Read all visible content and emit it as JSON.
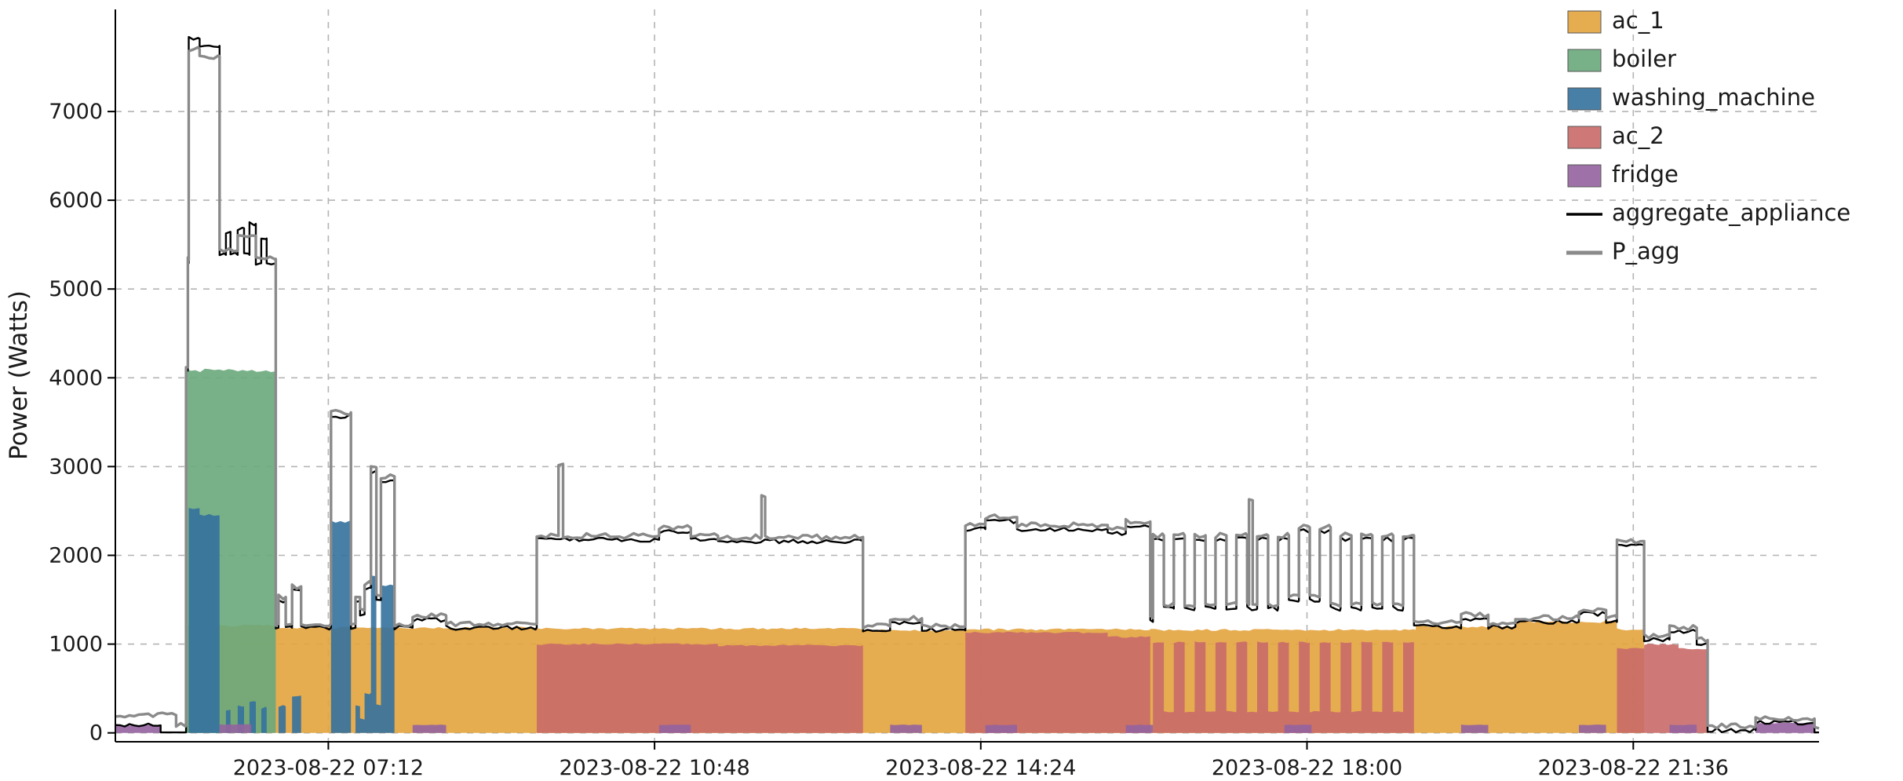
{
  "chart_data": {
    "type": "area",
    "title": "",
    "xlabel": "",
    "ylabel": "Power (Watts)",
    "x_unit": "hours of day 2023-08-22",
    "xlim": [
      4.85,
      23.65
    ],
    "ylim": [
      -100,
      8150
    ],
    "grid": "dashed",
    "legend_position": "upper right",
    "xticks": [
      {
        "t": 7.2,
        "label": "2023-08-22 07:12"
      },
      {
        "t": 10.8,
        "label": "2023-08-22 10:48"
      },
      {
        "t": 14.4,
        "label": "2023-08-22 14:24"
      },
      {
        "t": 18.0,
        "label": "2023-08-22 18:00"
      },
      {
        "t": 21.6,
        "label": "2023-08-22 21:36"
      }
    ],
    "yticks": [
      0,
      1000,
      2000,
      3000,
      4000,
      5000,
      6000,
      7000
    ],
    "series": [
      {
        "name": "ac_1",
        "kind": "area",
        "color": "#e3a33d",
        "noise": 12,
        "points": [
          [
            4.85,
            0
          ],
          [
            5.65,
            1210
          ],
          [
            6.6,
            1185
          ],
          [
            9.5,
            1175
          ],
          [
            13.1,
            1155
          ],
          [
            14.23,
            1165
          ],
          [
            16.27,
            1160
          ],
          [
            19.2,
            1195
          ],
          [
            20.3,
            1250
          ],
          [
            21.42,
            1165
          ],
          [
            21.72,
            0
          ],
          [
            23.65,
            0
          ]
        ]
      },
      {
        "name": "boiler",
        "kind": "area",
        "color": "#69a87b",
        "noise": 22,
        "points": [
          [
            4.85,
            0
          ],
          [
            5.63,
            4080
          ],
          [
            6.62,
            0
          ],
          [
            23.65,
            0
          ]
        ]
      },
      {
        "name": "washing_machine",
        "kind": "area",
        "color": "#34719d",
        "noise": 16,
        "points": [
          [
            4.85,
            0
          ],
          [
            5.66,
            2530
          ],
          [
            5.78,
            2450
          ],
          [
            6.0,
            0
          ],
          [
            6.07,
            260
          ],
          [
            6.12,
            0
          ],
          [
            6.2,
            300
          ],
          [
            6.27,
            0
          ],
          [
            6.33,
            350
          ],
          [
            6.4,
            0
          ],
          [
            6.46,
            280
          ],
          [
            6.52,
            0
          ],
          [
            6.65,
            300
          ],
          [
            6.73,
            0
          ],
          [
            6.8,
            420
          ],
          [
            6.9,
            0
          ],
          [
            7.23,
            2380
          ],
          [
            7.45,
            0
          ],
          [
            7.5,
            300
          ],
          [
            7.55,
            150
          ],
          [
            7.6,
            450
          ],
          [
            7.67,
            1760
          ],
          [
            7.73,
            310
          ],
          [
            7.78,
            1660
          ],
          [
            7.93,
            0
          ],
          [
            23.65,
            0
          ]
        ]
      },
      {
        "name": "ac_2",
        "kind": "area",
        "color": "#c96a68",
        "noise": 10,
        "points": [
          [
            4.85,
            0
          ],
          [
            9.5,
            1000
          ],
          [
            11.5,
            985
          ],
          [
            13.1,
            0
          ],
          [
            14.23,
            1130
          ],
          [
            15.8,
            1080
          ],
          [
            16.27,
            0
          ],
          [
            16.3,
            1020
          ],
          [
            16.42,
            240
          ],
          [
            16.53,
            1020
          ],
          [
            16.65,
            240
          ],
          [
            16.76,
            1020
          ],
          [
            16.88,
            240
          ],
          [
            16.99,
            1020
          ],
          [
            17.11,
            240
          ],
          [
            17.22,
            1020
          ],
          [
            17.34,
            240
          ],
          [
            17.45,
            1020
          ],
          [
            17.57,
            240
          ],
          [
            17.68,
            1020
          ],
          [
            17.8,
            240
          ],
          [
            17.91,
            1020
          ],
          [
            18.03,
            240
          ],
          [
            18.14,
            1020
          ],
          [
            18.26,
            240
          ],
          [
            18.37,
            1020
          ],
          [
            18.49,
            240
          ],
          [
            18.6,
            1020
          ],
          [
            18.72,
            240
          ],
          [
            18.83,
            1020
          ],
          [
            18.95,
            240
          ],
          [
            19.06,
            1020
          ],
          [
            19.18,
            0
          ],
          [
            21.42,
            950
          ],
          [
            21.72,
            1000
          ],
          [
            22.1,
            950
          ],
          [
            22.42,
            0
          ],
          [
            23.65,
            0
          ]
        ]
      },
      {
        "name": "fridge",
        "kind": "area",
        "color": "#93639f",
        "noise": 4,
        "points": [
          [
            4.85,
            85
          ],
          [
            5.35,
            0
          ],
          [
            6.0,
            95
          ],
          [
            6.35,
            0
          ],
          [
            8.13,
            90
          ],
          [
            8.5,
            0
          ],
          [
            10.85,
            90
          ],
          [
            11.2,
            0
          ],
          [
            13.4,
            90
          ],
          [
            13.75,
            0
          ],
          [
            14.45,
            90
          ],
          [
            14.8,
            0
          ],
          [
            16.0,
            90
          ],
          [
            16.3,
            0
          ],
          [
            17.75,
            90
          ],
          [
            18.05,
            0
          ],
          [
            19.7,
            90
          ],
          [
            20.0,
            0
          ],
          [
            21.0,
            90
          ],
          [
            21.3,
            0
          ],
          [
            22.0,
            90
          ],
          [
            22.3,
            0
          ],
          [
            22.95,
            110
          ],
          [
            23.6,
            0
          ],
          [
            23.65,
            0
          ]
        ]
      },
      {
        "name": "aggregate_appliance",
        "kind": "line",
        "color": "#000000",
        "width": 2.4,
        "noise": 24,
        "points": [
          [
            4.85,
            85
          ],
          [
            5.35,
            5
          ],
          [
            5.63,
            4080
          ],
          [
            5.65,
            5290
          ],
          [
            5.66,
            7820
          ],
          [
            5.78,
            7740
          ],
          [
            6.0,
            5385
          ],
          [
            6.07,
            5645
          ],
          [
            6.12,
            5385
          ],
          [
            6.2,
            5685
          ],
          [
            6.27,
            5385
          ],
          [
            6.33,
            5735
          ],
          [
            6.4,
            5290
          ],
          [
            6.46,
            5570
          ],
          [
            6.52,
            5290
          ],
          [
            6.62,
            1185
          ],
          [
            6.65,
            1485
          ],
          [
            6.73,
            1185
          ],
          [
            6.8,
            1605
          ],
          [
            6.9,
            1185
          ],
          [
            7.23,
            3565
          ],
          [
            7.45,
            1185
          ],
          [
            7.5,
            1485
          ],
          [
            7.55,
            1335
          ],
          [
            7.6,
            1635
          ],
          [
            7.67,
            2945
          ],
          [
            7.73,
            1495
          ],
          [
            7.78,
            2845
          ],
          [
            7.93,
            1185
          ],
          [
            8.13,
            1275
          ],
          [
            8.5,
            1185
          ],
          [
            9.5,
            2175
          ],
          [
            10.85,
            2265
          ],
          [
            11.2,
            2175
          ],
          [
            11.5,
            2160
          ],
          [
            13.1,
            1155
          ],
          [
            13.4,
            1245
          ],
          [
            13.75,
            1155
          ],
          [
            14.23,
            2295
          ],
          [
            14.45,
            2385
          ],
          [
            14.8,
            2295
          ],
          [
            15.8,
            2245
          ],
          [
            16.0,
            2335
          ],
          [
            16.27,
            1250
          ],
          [
            16.3,
            2180
          ],
          [
            16.42,
            1400
          ],
          [
            16.53,
            2180
          ],
          [
            16.65,
            1400
          ],
          [
            16.76,
            2180
          ],
          [
            16.88,
            1400
          ],
          [
            16.99,
            2180
          ],
          [
            17.11,
            1400
          ],
          [
            17.22,
            2180
          ],
          [
            17.34,
            1400
          ],
          [
            17.45,
            2180
          ],
          [
            17.57,
            1400
          ],
          [
            17.68,
            2180
          ],
          [
            17.8,
            1490
          ],
          [
            17.91,
            2270
          ],
          [
            18.03,
            1490
          ],
          [
            18.14,
            2270
          ],
          [
            18.26,
            1400
          ],
          [
            18.37,
            2180
          ],
          [
            18.49,
            1400
          ],
          [
            18.6,
            2180
          ],
          [
            18.72,
            1400
          ],
          [
            18.83,
            2180
          ],
          [
            18.95,
            1400
          ],
          [
            19.06,
            2180
          ],
          [
            19.18,
            1195
          ],
          [
            19.7,
            1285
          ],
          [
            20.0,
            1195
          ],
          [
            20.3,
            1250
          ],
          [
            21.0,
            1340
          ],
          [
            21.3,
            1250
          ],
          [
            21.42,
            2115
          ],
          [
            21.72,
            1050
          ],
          [
            22.0,
            1140
          ],
          [
            22.3,
            1000
          ],
          [
            22.42,
            30
          ],
          [
            22.95,
            115
          ],
          [
            23.6,
            5
          ],
          [
            23.65,
            5
          ]
        ]
      },
      {
        "name": "P_agg",
        "kind": "line",
        "color": "#8a8a8a",
        "width": 3.4,
        "noise": 28,
        "points": [
          [
            4.85,
            200
          ],
          [
            5.52,
            95
          ],
          [
            5.63,
            4120
          ],
          [
            5.65,
            5330
          ],
          [
            5.66,
            7700
          ],
          [
            5.78,
            7620
          ],
          [
            6.0,
            5430
          ],
          [
            6.2,
            5600
          ],
          [
            6.4,
            5340
          ],
          [
            6.62,
            1230
          ],
          [
            6.65,
            1530
          ],
          [
            6.73,
            1230
          ],
          [
            6.8,
            1650
          ],
          [
            6.9,
            1230
          ],
          [
            7.23,
            3610
          ],
          [
            7.45,
            1230
          ],
          [
            7.5,
            1530
          ],
          [
            7.55,
            1380
          ],
          [
            7.6,
            1680
          ],
          [
            7.67,
            2990
          ],
          [
            7.73,
            1540
          ],
          [
            7.78,
            2890
          ],
          [
            7.93,
            1230
          ],
          [
            8.13,
            1320
          ],
          [
            8.5,
            1230
          ],
          [
            9.5,
            2220
          ],
          [
            9.74,
            3030
          ],
          [
            9.79,
            2220
          ],
          [
            10.85,
            2310
          ],
          [
            11.2,
            2220
          ],
          [
            11.5,
            2205
          ],
          [
            11.98,
            2660
          ],
          [
            12.02,
            2205
          ],
          [
            13.1,
            1200
          ],
          [
            13.4,
            1290
          ],
          [
            13.75,
            1200
          ],
          [
            14.23,
            2340
          ],
          [
            14.45,
            2430
          ],
          [
            14.8,
            2340
          ],
          [
            15.8,
            2290
          ],
          [
            16.0,
            2380
          ],
          [
            16.27,
            1295
          ],
          [
            16.3,
            2225
          ],
          [
            16.42,
            1445
          ],
          [
            16.53,
            2225
          ],
          [
            16.65,
            1445
          ],
          [
            16.76,
            2225
          ],
          [
            16.88,
            1445
          ],
          [
            16.99,
            2225
          ],
          [
            17.11,
            1445
          ],
          [
            17.22,
            2225
          ],
          [
            17.34,
            1445
          ],
          [
            17.36,
            2620
          ],
          [
            17.4,
            1445
          ],
          [
            17.45,
            2225
          ],
          [
            17.57,
            1445
          ],
          [
            17.68,
            2225
          ],
          [
            17.8,
            1535
          ],
          [
            17.91,
            2315
          ],
          [
            18.03,
            1535
          ],
          [
            18.14,
            2315
          ],
          [
            18.26,
            1445
          ],
          [
            18.37,
            2225
          ],
          [
            18.49,
            1445
          ],
          [
            18.6,
            2225
          ],
          [
            18.72,
            1445
          ],
          [
            18.83,
            2225
          ],
          [
            18.95,
            1445
          ],
          [
            19.06,
            2225
          ],
          [
            19.18,
            1240
          ],
          [
            19.7,
            1330
          ],
          [
            20.0,
            1240
          ],
          [
            20.3,
            1295
          ],
          [
            21.0,
            1385
          ],
          [
            21.3,
            1295
          ],
          [
            21.42,
            2160
          ],
          [
            21.72,
            1095
          ],
          [
            22.0,
            1185
          ],
          [
            22.3,
            1045
          ],
          [
            22.42,
            75
          ],
          [
            22.95,
            160
          ],
          [
            23.6,
            50
          ],
          [
            23.65,
            50
          ]
        ]
      }
    ]
  }
}
